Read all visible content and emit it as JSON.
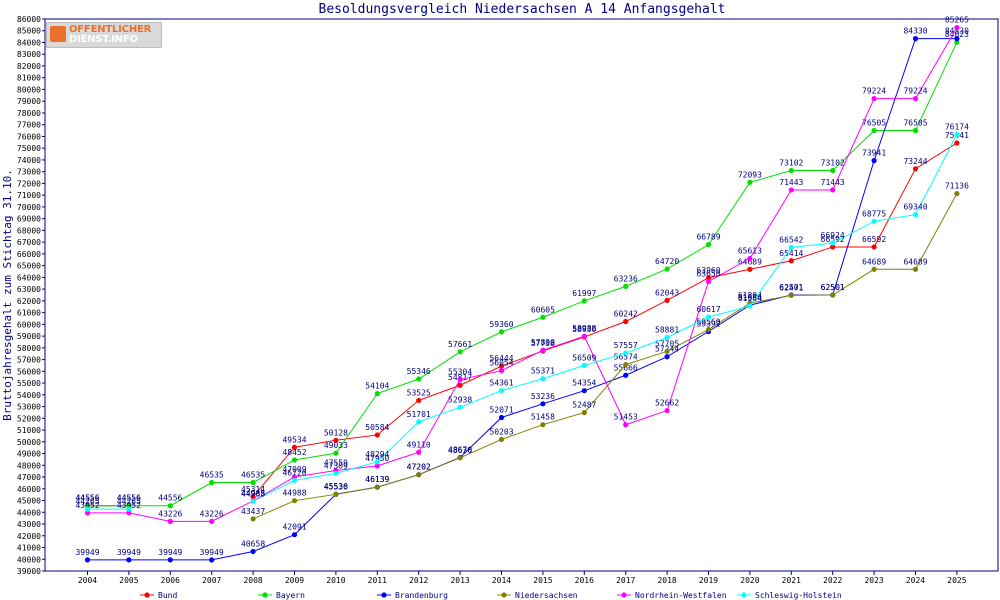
{
  "logo": {
    "line1": "OFFENTLICHER",
    "line2": "DIENST.INFO"
  },
  "chart_data": {
    "type": "line",
    "title": "Besoldungsvergleich Niedersachsen A 14 Anfangsgehalt",
    "ylabel": "Bruttojahresgehalt zum Stichtag 31.10.",
    "xlabel": "",
    "ylim": [
      39000,
      86000
    ],
    "ytick_step": 1000,
    "grid": false,
    "legend_position": "bottom",
    "categories": [
      "2004",
      "2005",
      "2006",
      "2007",
      "2008",
      "2009",
      "2010",
      "2011",
      "2012",
      "2013",
      "2014",
      "2015",
      "2016",
      "2017",
      "2018",
      "2019",
      "2020",
      "2021",
      "2022",
      "2023",
      "2024",
      "2025"
    ],
    "series": [
      {
        "name": "Bund",
        "color": "#ff0000",
        "values": [
          44556,
          44556,
          null,
          null,
          45314,
          49534,
          50128,
          50584,
          53525,
          54817,
          56444,
          57738,
          58930,
          60242,
          62043,
          63960,
          64689,
          65414,
          66592,
          66592,
          73244,
          75441
        ]
      },
      {
        "name": "Bayern",
        "color": "#00e000",
        "values": [
          44556,
          44556,
          44556,
          46535,
          46535,
          48452,
          49033,
          54104,
          55346,
          57661,
          59360,
          60605,
          61997,
          63236,
          64720,
          66789,
          72093,
          73102,
          73102,
          76505,
          76505,
          84023
        ]
      },
      {
        "name": "Brandenburg",
        "color": "#0000ff",
        "values": [
          39949,
          39949,
          39949,
          39949,
          40658,
          42091,
          45536,
          46139,
          47202,
          48670,
          52071,
          53236,
          54354,
          55666,
          57244,
          59392,
          61634,
          62501,
          62501,
          73941,
          84330,
          84330
        ]
      },
      {
        "name": "Niedersachsen",
        "color": "#808000",
        "values": [
          null,
          null,
          null,
          null,
          43437,
          44988,
          45530,
          46139,
          47202,
          48636,
          50203,
          51458,
          52487,
          56574,
          57705,
          59560,
          61804,
          62471,
          62501,
          64689,
          64689,
          71136
        ]
      },
      {
        "name": "Nordrhein-Westfalen",
        "color": "#ff00ff",
        "values": [
          43952,
          43952,
          43226,
          43226,
          44965,
          47009,
          47559,
          47950,
          49110,
          55304,
          56054,
          57800,
          58988,
          51453,
          52662,
          63650,
          65613,
          71443,
          71443,
          79224,
          79224,
          85265
        ]
      },
      {
        "name": "Schleswig-Holstein",
        "color": "#00ffff",
        "values": [
          44265,
          44265,
          null,
          null,
          44938,
          46720,
          47309,
          48294,
          51701,
          52938,
          54361,
          55371,
          56509,
          57557,
          58881,
          60617,
          61564,
          66542,
          66924,
          68775,
          69340,
          76174
        ]
      }
    ]
  }
}
